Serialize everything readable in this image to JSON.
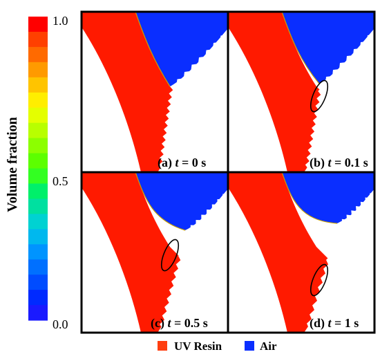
{
  "colorbar": {
    "axis_label": "Volume fraction",
    "tick_top": "1.0",
    "tick_mid": "0.5",
    "tick_bottom": "0.0",
    "colors": [
      "#ff0000",
      "#ff4000",
      "#ff6a00",
      "#ff9a00",
      "#ffc400",
      "#ffee00",
      "#e4ff00",
      "#b8ff00",
      "#8cff00",
      "#5cff00",
      "#33ff22",
      "#00f06a",
      "#00e0a0",
      "#00d2d2",
      "#00b8ee",
      "#0094ff",
      "#0070ff",
      "#004cff",
      "#002aff",
      "#1a1aff"
    ]
  },
  "panels": [
    {
      "id": "a",
      "prefix": "(a) ",
      "var": "t",
      "suffix": " = 0 s",
      "front_level": 0
    },
    {
      "id": "b",
      "prefix": "(b) ",
      "var": "t",
      "suffix": " = 0.1 s",
      "front_level": 1
    },
    {
      "id": "c",
      "prefix": "(c) ",
      "var": "t",
      "suffix": " = 0.5 s",
      "front_level": 2
    },
    {
      "id": "d",
      "prefix": "(d) ",
      "var": "t",
      "suffix": " = 1 s",
      "front_level": 3
    }
  ],
  "legend": [
    {
      "label": "UV Resin",
      "color": "#ff3e10"
    },
    {
      "label": "Air",
      "color": "#0a2eff"
    }
  ],
  "colors": {
    "resin": "#ff1a00",
    "air": "#0a2eff",
    "frame": "#000000",
    "interface": "#c8a000"
  }
}
